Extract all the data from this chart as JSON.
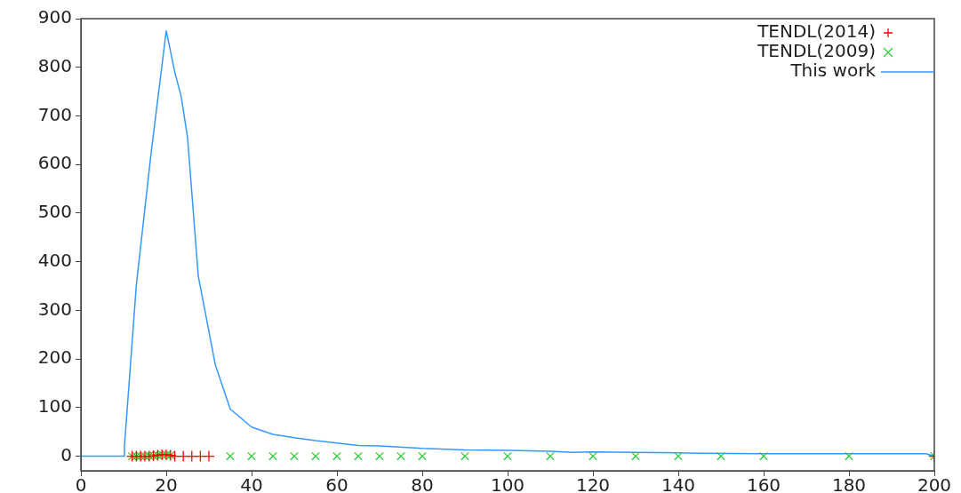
{
  "chart_data": {
    "type": "line",
    "xlim": [
      0,
      200
    ],
    "xticks": [
      0,
      20,
      40,
      60,
      80,
      100,
      120,
      140,
      160,
      180,
      200
    ],
    "ylim": [
      -30,
      900
    ],
    "yticks": [
      0,
      100,
      200,
      300,
      400,
      500,
      600,
      700,
      800,
      900
    ],
    "grid": false,
    "legend": "top right",
    "series": [
      {
        "name": "TENDL(2014)",
        "type": "scatter",
        "marker": "cross",
        "color": "#ff0000",
        "x": [
          12,
          13,
          14,
          15,
          16,
          17,
          18,
          19,
          20,
          21,
          22,
          24,
          26,
          28,
          30,
          200
        ],
        "values": [
          0,
          0,
          0,
          0,
          0,
          1,
          2,
          3,
          3,
          2,
          0,
          0,
          0,
          0,
          0,
          0
        ]
      },
      {
        "name": "TENDL(2009)",
        "type": "scatter",
        "marker": "x",
        "color": "#33cc33",
        "x": [
          12,
          13,
          14,
          15,
          16,
          17,
          18,
          19,
          20,
          21,
          35,
          40,
          45,
          50,
          55,
          60,
          65,
          70,
          75,
          80,
          90,
          100,
          110,
          120,
          130,
          140,
          150,
          160,
          180,
          200
        ],
        "values": [
          0,
          0,
          0,
          0,
          1,
          1,
          2,
          3,
          3,
          2,
          0,
          0,
          0,
          0,
          0,
          0,
          0,
          0,
          0,
          0,
          0,
          0,
          0,
          0,
          0,
          0,
          0,
          0,
          0,
          0
        ]
      },
      {
        "name": "This work",
        "marker": "none",
        "color": "#3399ff",
        "x": [
          0,
          10,
          10.2,
          13,
          16.5,
          20,
          22,
          23.5,
          25,
          27.5,
          31.5,
          35,
          40,
          45,
          50,
          55,
          60,
          65,
          70,
          80,
          90,
          100,
          110,
          115,
          120,
          130,
          140,
          145,
          160,
          180,
          198,
          200
        ],
        "values": [
          0,
          0,
          20,
          353,
          627,
          875,
          790,
          740,
          655,
          371,
          188,
          97,
          60,
          45,
          38,
          32,
          27,
          22,
          21,
          16,
          13,
          12,
          10,
          8,
          9,
          8,
          7,
          6,
          5,
          5,
          5,
          0
        ]
      }
    ]
  }
}
